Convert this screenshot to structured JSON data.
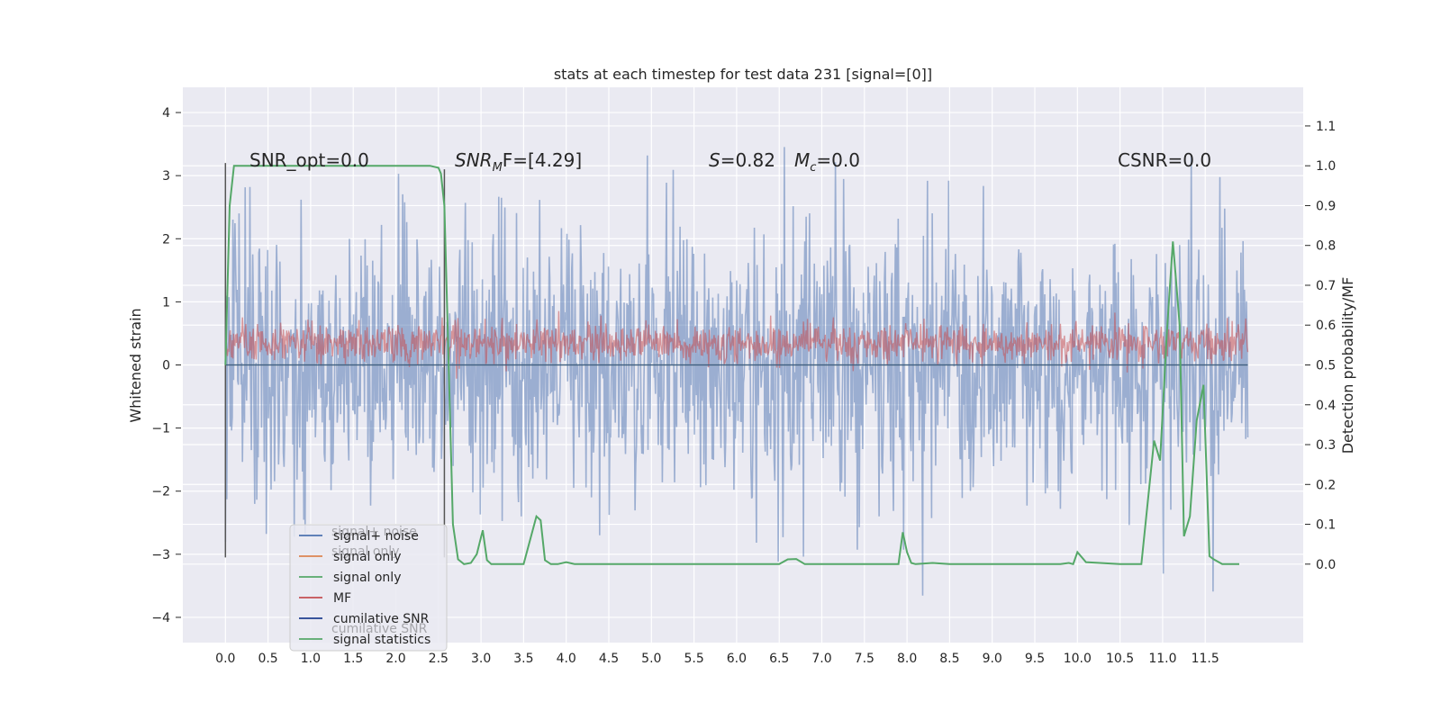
{
  "chart_data": {
    "type": "line",
    "title": "stats at each timestep for test data 231 [signal=[0]]",
    "ylabel": "Whitened strain",
    "y2label": "Detection probability/MF",
    "xlim": [
      -0.5,
      12.65
    ],
    "ylim": [
      -4.4,
      4.4
    ],
    "y2lim": [
      -0.197,
      1.197
    ],
    "x_ticks": [
      "0.0",
      "0.5",
      "1.0",
      "1.5",
      "2.0",
      "2.5",
      "3.0",
      "3.5",
      "4.0",
      "4.5",
      "5.0",
      "5.5",
      "6.0",
      "6.5",
      "7.0",
      "7.5",
      "8.0",
      "8.5",
      "9.0",
      "9.5",
      "10.0",
      "10.5",
      "11.0",
      "11.5"
    ],
    "y_ticks": [
      "4",
      "3",
      "2",
      "1",
      "0",
      "−1",
      "−2",
      "−3",
      "−4"
    ],
    "y2_ticks": [
      "1.1",
      "1.0",
      "0.9",
      "0.8",
      "0.7",
      "0.6",
      "0.5",
      "0.4",
      "0.3",
      "0.2",
      "0.1",
      "0.0"
    ],
    "grid": true,
    "legend_position": "lower-left",
    "annotations": [
      {
        "id": "snr_opt",
        "text": "SNR_opt=0.0"
      },
      {
        "id": "snr_mf",
        "text": "SNR",
        "sub": "M",
        "tail": "F=[4.29]"
      },
      {
        "id": "s_stat",
        "text": "S",
        "tail": "=0.82"
      },
      {
        "id": "mc",
        "text": "M",
        "sub": "c",
        "tail": "=0.0"
      },
      {
        "id": "csnr",
        "text": "CSNR=0.0"
      }
    ],
    "series": [
      {
        "name": "signal+ noise",
        "color": "#4c72b0",
        "style": "noise",
        "x_range": [
          0,
          12
        ],
        "y_band": [
          -3.0,
          3.2
        ]
      },
      {
        "name": "signal only",
        "color": "#dd8452",
        "values_constant": 0.0
      },
      {
        "name": "signal only",
        "color": "#55a868",
        "values_constant": 0.0
      },
      {
        "name": "MF",
        "color": "#c44e52",
        "axis": "right",
        "x_range": [
          0,
          12
        ],
        "y_band": [
          0.5,
          0.62
        ]
      },
      {
        "name": "cumilative SNR",
        "color": "#1f3f8f",
        "values_constant": 0.0
      },
      {
        "name": "signal statistics",
        "color": "#55a868",
        "axis": "right",
        "x": [
          0,
          0.05,
          0.1,
          0.3,
          0.6,
          1.0,
          1.5,
          2.0,
          2.4,
          2.5,
          2.53,
          2.57,
          2.62,
          2.67,
          2.73,
          2.8,
          2.88,
          2.95,
          3.02,
          3.07,
          3.12,
          3.2,
          3.3,
          3.5,
          3.65,
          3.7,
          3.75,
          3.82,
          3.9,
          4.0,
          4.1,
          4.2,
          5.0,
          6.0,
          6.5,
          6.6,
          6.7,
          6.8,
          7.0,
          7.5,
          7.9,
          7.95,
          8.0,
          8.05,
          8.1,
          8.3,
          8.5,
          9.0,
          9.5,
          9.8,
          9.9,
          9.95,
          10.0,
          10.1,
          10.5,
          10.75,
          10.9,
          10.97,
          11.05,
          11.12,
          11.2,
          11.25,
          11.32,
          11.4,
          11.48,
          11.55,
          11.6,
          11.7,
          11.8,
          11.9
        ],
        "y": [
          0.5,
          0.9,
          1.0,
          1.0,
          1.0,
          1.0,
          1.0,
          1.0,
          1.0,
          0.995,
          0.98,
          0.9,
          0.5,
          0.1,
          0.012,
          0.0,
          0.003,
          0.025,
          0.085,
          0.01,
          0.0,
          0.0,
          0.0,
          0.0,
          0.12,
          0.11,
          0.01,
          0.0,
          0.0,
          0.005,
          0.0,
          0.0,
          0.0,
          0.0,
          0.0,
          0.012,
          0.013,
          0.0,
          0.0,
          0.0,
          0.0,
          0.08,
          0.03,
          0.003,
          0.0,
          0.003,
          0.0,
          0.0,
          0.0,
          0.0,
          0.003,
          0.0,
          0.03,
          0.005,
          0.0,
          0.0,
          0.31,
          0.26,
          0.58,
          0.81,
          0.6,
          0.07,
          0.12,
          0.36,
          0.45,
          0.02,
          0.012,
          0.0,
          0.0,
          0.0
        ]
      }
    ]
  },
  "legend": {
    "items": [
      {
        "label": "signal+ noise",
        "color": "#4c72b0"
      },
      {
        "label": "signal only",
        "color": "#dd8452"
      },
      {
        "label": "signal only",
        "color": "#55a868"
      },
      {
        "label": "MF",
        "color": "#c44e52"
      },
      {
        "label": "cumilative SNR",
        "color": "#1f3f8f"
      },
      {
        "label": "signal statistics",
        "color": "#55a868"
      }
    ],
    "ghost_labels": [
      "signal+ noise",
      "signal only",
      "cumilative SNR"
    ]
  },
  "colors": {
    "background": "#eaeaf2",
    "grid": "#ffffff",
    "text": "#262626"
  }
}
